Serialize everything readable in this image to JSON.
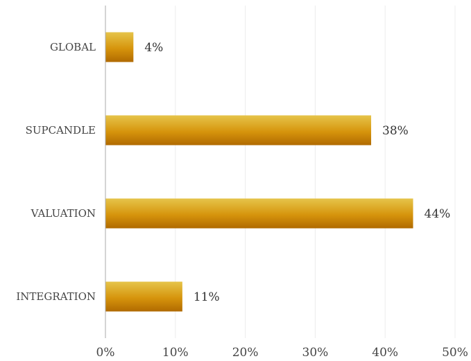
{
  "chart_data": {
    "type": "bar",
    "orientation": "horizontal",
    "categories": [
      "GLOBAL",
      "SUPCANDLE",
      "VALUATION",
      "INTEGRATION"
    ],
    "values": [
      4,
      38,
      44,
      11
    ],
    "value_labels": [
      "4%",
      "38%",
      "44%",
      "11%"
    ],
    "xlim": [
      0,
      50
    ],
    "xticks": [
      0,
      10,
      20,
      30,
      40,
      50
    ],
    "xtick_labels": [
      "0%",
      "10%",
      "20%",
      "30%",
      "40%",
      "50%"
    ],
    "title": "",
    "xlabel": "",
    "ylabel": "",
    "grid": "vertical",
    "legend": "none",
    "colors": {
      "bar_top": "#e6c44a",
      "bar_mid": "#d6940c",
      "bar_bottom": "#b06a00",
      "grid": "#ececec",
      "axis": "#aaaaaa"
    }
  }
}
